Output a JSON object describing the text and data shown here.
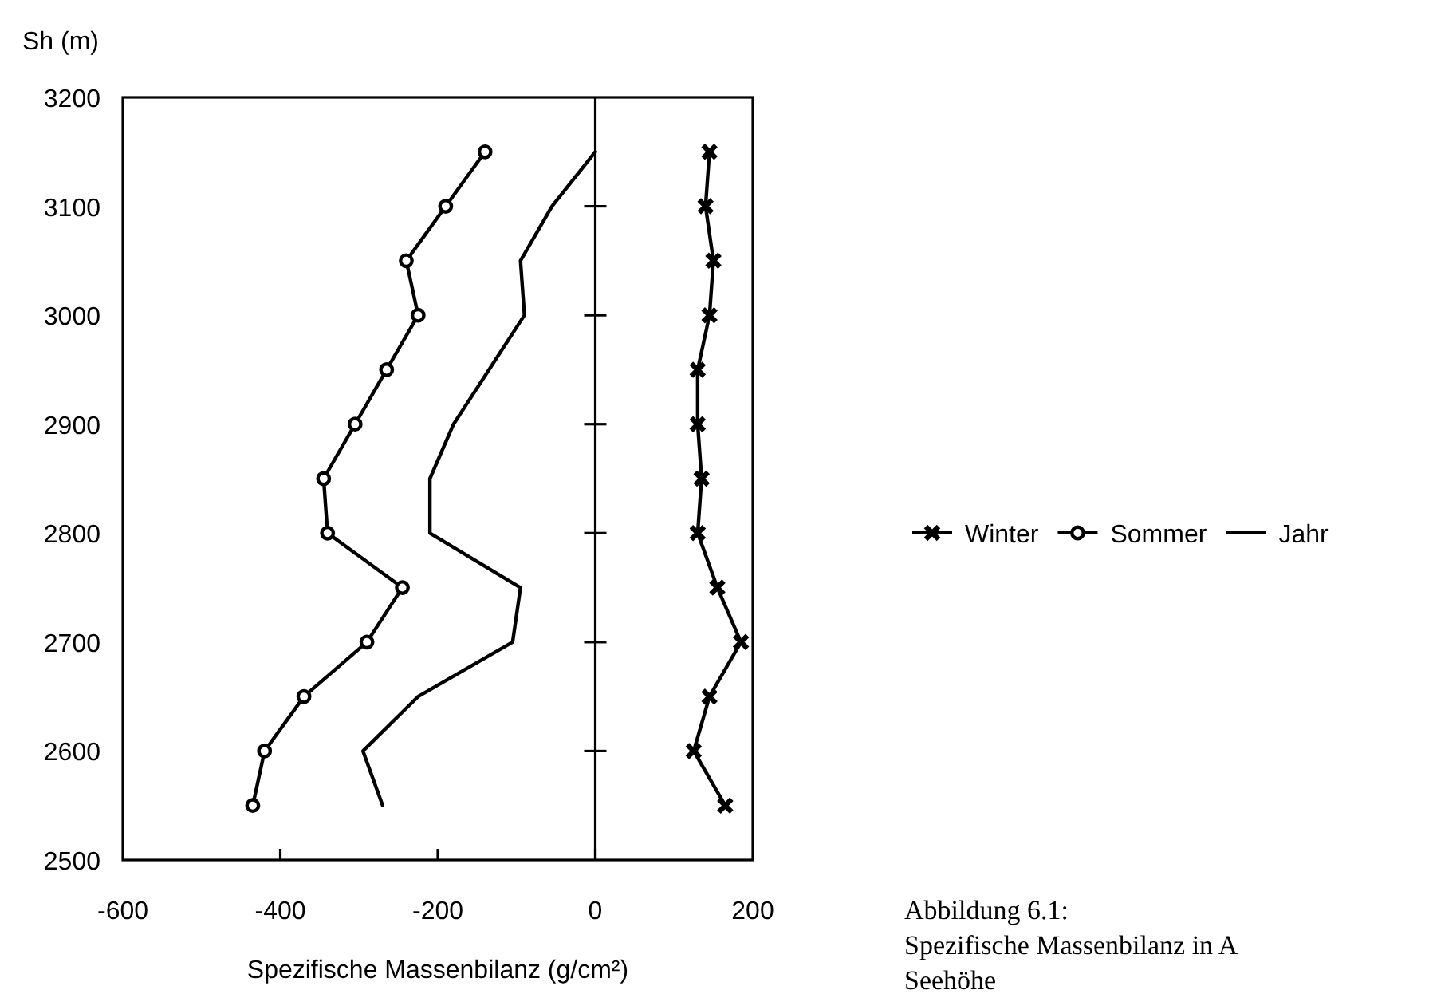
{
  "chart_data": {
    "type": "line",
    "xlabel": "Spezifische Massenbilanz (g/cm²)",
    "ylabel": "Sh (m)",
    "xlim": [
      -600,
      200
    ],
    "xticks": [
      -600,
      -400,
      -200,
      0,
      200
    ],
    "ylim": [
      2500,
      3200
    ],
    "yticks": [
      2500,
      2600,
      2700,
      2800,
      2900,
      3000,
      3100,
      3200
    ],
    "legend": "right",
    "ref_lines": [
      {
        "axis": "x",
        "value": 0
      }
    ],
    "series": [
      {
        "name": "Winter",
        "color": "#000000",
        "marker": "cross",
        "x": [
          145,
          140,
          150,
          145,
          130,
          130,
          135,
          130,
          155,
          185,
          145,
          125,
          165
        ],
        "values": [
          3150,
          3100,
          3050,
          3000,
          2950,
          2900,
          2850,
          2800,
          2750,
          2700,
          2650,
          2600,
          2550
        ]
      },
      {
        "name": "Sommer",
        "color": "#000000",
        "marker": "circle",
        "x": [
          -140,
          -190,
          -240,
          -225,
          -265,
          -305,
          -345,
          -340,
          -245,
          -290,
          -370,
          -420,
          -435
        ],
        "values": [
          3150,
          3100,
          3050,
          3000,
          2950,
          2900,
          2850,
          2800,
          2750,
          2700,
          2650,
          2600,
          2550
        ]
      },
      {
        "name": "Jahr",
        "color": "#000000",
        "marker": "none",
        "x": [
          0,
          -55,
          -95,
          -90,
          -135,
          -180,
          -210,
          -210,
          -95,
          -105,
          -225,
          -295,
          -270
        ],
        "values": [
          3150,
          3100,
          3050,
          3000,
          2950,
          2900,
          2850,
          2800,
          2750,
          2700,
          2650,
          2600,
          2550
        ]
      }
    ],
    "annotations": [
      "Abbildung 6.1:",
      "Spezifische Massenbilanz in A",
      "Seehöhe"
    ]
  }
}
